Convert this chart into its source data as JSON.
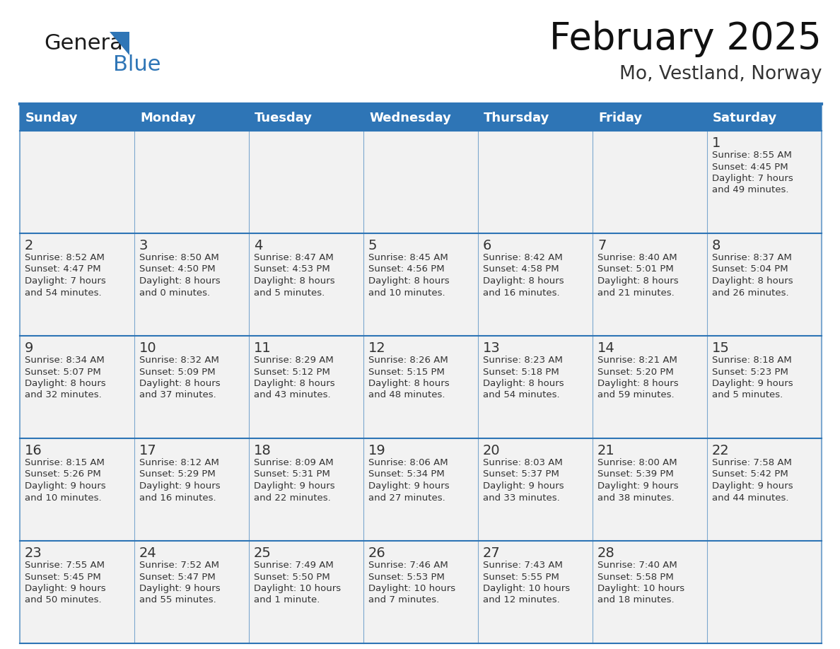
{
  "title": "February 2025",
  "subtitle": "Mo, Vestland, Norway",
  "header_bg": "#2E75B6",
  "header_text_color": "#FFFFFF",
  "cell_bg": "#F2F2F2",
  "day_headers": [
    "Sunday",
    "Monday",
    "Tuesday",
    "Wednesday",
    "Thursday",
    "Friday",
    "Saturday"
  ],
  "days": [
    {
      "day": 1,
      "col": 6,
      "row": 0,
      "sunrise": "8:55 AM",
      "sunset": "4:45 PM",
      "daylight_line1": "Daylight: 7 hours",
      "daylight_line2": "and 49 minutes."
    },
    {
      "day": 2,
      "col": 0,
      "row": 1,
      "sunrise": "8:52 AM",
      "sunset": "4:47 PM",
      "daylight_line1": "Daylight: 7 hours",
      "daylight_line2": "and 54 minutes."
    },
    {
      "day": 3,
      "col": 1,
      "row": 1,
      "sunrise": "8:50 AM",
      "sunset": "4:50 PM",
      "daylight_line1": "Daylight: 8 hours",
      "daylight_line2": "and 0 minutes."
    },
    {
      "day": 4,
      "col": 2,
      "row": 1,
      "sunrise": "8:47 AM",
      "sunset": "4:53 PM",
      "daylight_line1": "Daylight: 8 hours",
      "daylight_line2": "and 5 minutes."
    },
    {
      "day": 5,
      "col": 3,
      "row": 1,
      "sunrise": "8:45 AM",
      "sunset": "4:56 PM",
      "daylight_line1": "Daylight: 8 hours",
      "daylight_line2": "and 10 minutes."
    },
    {
      "day": 6,
      "col": 4,
      "row": 1,
      "sunrise": "8:42 AM",
      "sunset": "4:58 PM",
      "daylight_line1": "Daylight: 8 hours",
      "daylight_line2": "and 16 minutes."
    },
    {
      "day": 7,
      "col": 5,
      "row": 1,
      "sunrise": "8:40 AM",
      "sunset": "5:01 PM",
      "daylight_line1": "Daylight: 8 hours",
      "daylight_line2": "and 21 minutes."
    },
    {
      "day": 8,
      "col": 6,
      "row": 1,
      "sunrise": "8:37 AM",
      "sunset": "5:04 PM",
      "daylight_line1": "Daylight: 8 hours",
      "daylight_line2": "and 26 minutes."
    },
    {
      "day": 9,
      "col": 0,
      "row": 2,
      "sunrise": "8:34 AM",
      "sunset": "5:07 PM",
      "daylight_line1": "Daylight: 8 hours",
      "daylight_line2": "and 32 minutes."
    },
    {
      "day": 10,
      "col": 1,
      "row": 2,
      "sunrise": "8:32 AM",
      "sunset": "5:09 PM",
      "daylight_line1": "Daylight: 8 hours",
      "daylight_line2": "and 37 minutes."
    },
    {
      "day": 11,
      "col": 2,
      "row": 2,
      "sunrise": "8:29 AM",
      "sunset": "5:12 PM",
      "daylight_line1": "Daylight: 8 hours",
      "daylight_line2": "and 43 minutes."
    },
    {
      "day": 12,
      "col": 3,
      "row": 2,
      "sunrise": "8:26 AM",
      "sunset": "5:15 PM",
      "daylight_line1": "Daylight: 8 hours",
      "daylight_line2": "and 48 minutes."
    },
    {
      "day": 13,
      "col": 4,
      "row": 2,
      "sunrise": "8:23 AM",
      "sunset": "5:18 PM",
      "daylight_line1": "Daylight: 8 hours",
      "daylight_line2": "and 54 minutes."
    },
    {
      "day": 14,
      "col": 5,
      "row": 2,
      "sunrise": "8:21 AM",
      "sunset": "5:20 PM",
      "daylight_line1": "Daylight: 8 hours",
      "daylight_line2": "and 59 minutes."
    },
    {
      "day": 15,
      "col": 6,
      "row": 2,
      "sunrise": "8:18 AM",
      "sunset": "5:23 PM",
      "daylight_line1": "Daylight: 9 hours",
      "daylight_line2": "and 5 minutes."
    },
    {
      "day": 16,
      "col": 0,
      "row": 3,
      "sunrise": "8:15 AM",
      "sunset": "5:26 PM",
      "daylight_line1": "Daylight: 9 hours",
      "daylight_line2": "and 10 minutes."
    },
    {
      "day": 17,
      "col": 1,
      "row": 3,
      "sunrise": "8:12 AM",
      "sunset": "5:29 PM",
      "daylight_line1": "Daylight: 9 hours",
      "daylight_line2": "and 16 minutes."
    },
    {
      "day": 18,
      "col": 2,
      "row": 3,
      "sunrise": "8:09 AM",
      "sunset": "5:31 PM",
      "daylight_line1": "Daylight: 9 hours",
      "daylight_line2": "and 22 minutes."
    },
    {
      "day": 19,
      "col": 3,
      "row": 3,
      "sunrise": "8:06 AM",
      "sunset": "5:34 PM",
      "daylight_line1": "Daylight: 9 hours",
      "daylight_line2": "and 27 minutes."
    },
    {
      "day": 20,
      "col": 4,
      "row": 3,
      "sunrise": "8:03 AM",
      "sunset": "5:37 PM",
      "daylight_line1": "Daylight: 9 hours",
      "daylight_line2": "and 33 minutes."
    },
    {
      "day": 21,
      "col": 5,
      "row": 3,
      "sunrise": "8:00 AM",
      "sunset": "5:39 PM",
      "daylight_line1": "Daylight: 9 hours",
      "daylight_line2": "and 38 minutes."
    },
    {
      "day": 22,
      "col": 6,
      "row": 3,
      "sunrise": "7:58 AM",
      "sunset": "5:42 PM",
      "daylight_line1": "Daylight: 9 hours",
      "daylight_line2": "and 44 minutes."
    },
    {
      "day": 23,
      "col": 0,
      "row": 4,
      "sunrise": "7:55 AM",
      "sunset": "5:45 PM",
      "daylight_line1": "Daylight: 9 hours",
      "daylight_line2": "and 50 minutes."
    },
    {
      "day": 24,
      "col": 1,
      "row": 4,
      "sunrise": "7:52 AM",
      "sunset": "5:47 PM",
      "daylight_line1": "Daylight: 9 hours",
      "daylight_line2": "and 55 minutes."
    },
    {
      "day": 25,
      "col": 2,
      "row": 4,
      "sunrise": "7:49 AM",
      "sunset": "5:50 PM",
      "daylight_line1": "Daylight: 10 hours",
      "daylight_line2": "and 1 minute."
    },
    {
      "day": 26,
      "col": 3,
      "row": 4,
      "sunrise": "7:46 AM",
      "sunset": "5:53 PM",
      "daylight_line1": "Daylight: 10 hours",
      "daylight_line2": "and 7 minutes."
    },
    {
      "day": 27,
      "col": 4,
      "row": 4,
      "sunrise": "7:43 AM",
      "sunset": "5:55 PM",
      "daylight_line1": "Daylight: 10 hours",
      "daylight_line2": "and 12 minutes."
    },
    {
      "day": 28,
      "col": 5,
      "row": 4,
      "sunrise": "7:40 AM",
      "sunset": "5:58 PM",
      "daylight_line1": "Daylight: 10 hours",
      "daylight_line2": "and 18 minutes."
    }
  ],
  "num_rows": 5,
  "num_cols": 7,
  "line_color": "#2E75B6",
  "date_text_color": "#333333",
  "info_text_color": "#333333",
  "bg_color": "#FFFFFF",
  "logo_general_color": "#1a1a1a",
  "logo_blue_color": "#2E75B6",
  "logo_triangle_color": "#2E75B6"
}
